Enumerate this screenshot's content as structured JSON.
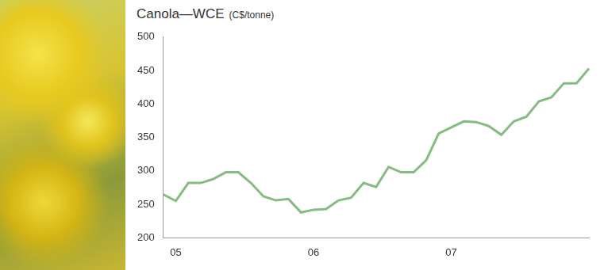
{
  "chart_data": {
    "type": "line",
    "title": "Canola—WCE",
    "subtitle": "(C$/tonne)",
    "categories": [
      null,
      "05",
      null,
      null,
      null,
      null,
      null,
      null,
      null,
      null,
      null,
      null,
      "06",
      null,
      null,
      null,
      null,
      null,
      null,
      null,
      null,
      null,
      null,
      "07",
      null,
      null,
      null,
      null,
      null,
      null,
      null,
      null,
      null,
      null,
      null
    ],
    "values": [
      265,
      255,
      282,
      282,
      288,
      298,
      298,
      282,
      262,
      256,
      258,
      238,
      242,
      243,
      256,
      260,
      282,
      276,
      306,
      298,
      298,
      316,
      356,
      365,
      374,
      373,
      367,
      354,
      374,
      381,
      404,
      410,
      431,
      431,
      453
    ],
    "color": "#86bb82",
    "ylim": [
      200,
      500
    ],
    "yticks": [
      200,
      250,
      300,
      350,
      400,
      450,
      500
    ],
    "grid": false
  }
}
